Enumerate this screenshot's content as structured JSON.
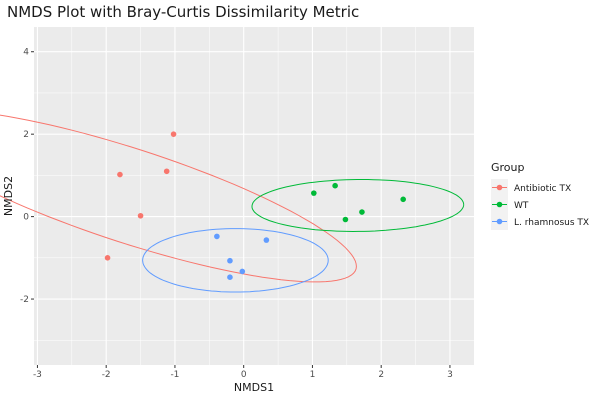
{
  "chart_data": {
    "type": "scatter",
    "title": "NMDS Plot with Bray-Curtis Dissimilarity Metric",
    "xlabel": "NMDS1",
    "ylabel": "NMDS2",
    "xlim": [
      -3.05,
      3.35
    ],
    "ylim": [
      -3.6,
      4.6
    ],
    "x_ticks": [
      -3,
      -2,
      -1,
      0,
      1,
      2,
      3
    ],
    "y_ticks": [
      -2,
      0,
      2,
      4
    ],
    "x_tick_labels": [
      "-3",
      "-2",
      "-1",
      "0",
      "1",
      "2",
      "3"
    ],
    "y_tick_labels": [
      "-2",
      "0",
      "2",
      "4"
    ],
    "grid": true,
    "legend": {
      "title": "Group",
      "position": "right"
    },
    "series": [
      {
        "name": "Antibiotic TX",
        "color": "#F8766D",
        "points": [
          [
            -1.02,
            2.0
          ],
          [
            -1.8,
            1.02
          ],
          [
            -1.12,
            1.1
          ],
          [
            -1.5,
            0.02
          ],
          [
            -1.98,
            -1.0
          ]
        ],
        "ellipse": {
          "center": [
            -1.65,
            0.5
          ],
          "semi_axes": [
            1.05,
            3.75
          ],
          "angle_deg": 60
        }
      },
      {
        "name": "WT",
        "color": "#00BA38",
        "points": [
          [
            1.02,
            0.57
          ],
          [
            1.33,
            0.75
          ],
          [
            1.72,
            0.11
          ],
          [
            2.32,
            0.42
          ],
          [
            1.48,
            -0.07
          ]
        ],
        "ellipse": {
          "center": [
            1.66,
            0.27
          ],
          "semi_axes": [
            1.54,
            0.63
          ],
          "angle_deg": 1
        }
      },
      {
        "name": "L. rhamnosus TX",
        "color": "#619CFF",
        "points": [
          [
            -0.39,
            -0.48
          ],
          [
            0.33,
            -0.57
          ],
          [
            -0.2,
            -1.07
          ],
          [
            -0.02,
            -1.33
          ],
          [
            -0.2,
            -1.47
          ]
        ],
        "ellipse": {
          "center": [
            -0.12,
            -1.06
          ],
          "semi_axes": [
            0.77,
            1.35
          ],
          "angle_deg": 90
        }
      }
    ]
  }
}
